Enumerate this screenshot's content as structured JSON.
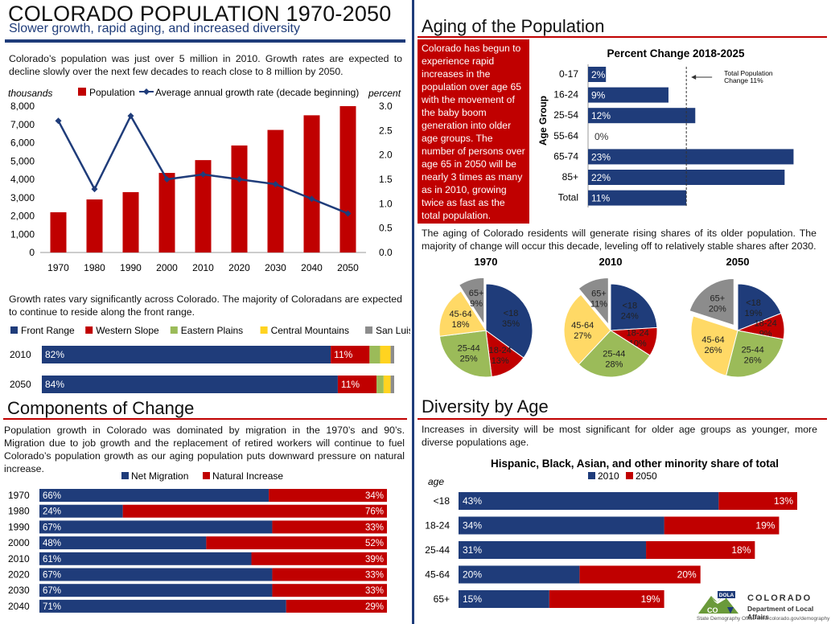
{
  "header": {
    "title": "COLORADO POPULATION 1970-2050",
    "subtitle": "Slower growth, rapid aging, and increased diversity"
  },
  "population": {
    "intro": "Colorado’s population was just over 5 million in 2010. Growth rates are expected to decline slowly over the next few decades to reach close to 8 million by 2050."
  },
  "regions": {
    "intro": "Growth rates vary significantly across Colorado. The majority of Coloradans are expected to continue to reside along the front range."
  },
  "components": {
    "title": "Components of Change",
    "text": "Population growth in Colorado was dominated by migration in the 1970’s and 90’s. Migration due to job growth and the replacement of retired workers will continue to fuel Colorado’s population growth as our aging population puts downward pressure on natural increase."
  },
  "aging": {
    "title": "Aging of the Population",
    "callout": "Colorado has begun to experience rapid increases in the population over age 65 with the movement of the baby boom generation into older age groups. The number of persons over age 65 in 2050 will be nearly 3 times as many as in 2010, growing twice as fast as the total population.",
    "pie_intro": "The aging of Colorado residents will generate rising shares of its older population. The majority of change will occur this decade, leveling off to relatively stable shares after 2030."
  },
  "diversity": {
    "title": "Diversity by Age",
    "text": "Increases in diversity will be most significant for older age groups as younger, more diverse populations age."
  },
  "footer": {
    "logo_small": "DOLA",
    "logo_abbrev": "CO",
    "logo_state": "COLORADO",
    "logo_dept": "Department of Local Affairs",
    "credit": "State Demography Office  www.colorado.gov/demography"
  },
  "colors": {
    "navy": "#1f3c7a",
    "red": "#c00000",
    "green": "#9bbb59",
    "yellow": "#ffd320",
    "gray": "#8c8c8c",
    "lightyellow": "#ffd966"
  },
  "chart_data": [
    {
      "id": "population",
      "type": "bar",
      "categories": [
        "1970",
        "1980",
        "1990",
        "2000",
        "2010",
        "2020",
        "2030",
        "2040",
        "2050"
      ],
      "series": [
        {
          "name": "Population",
          "kind": "bar",
          "axis": "left",
          "values": [
            2200,
            2900,
            3300,
            4350,
            5050,
            5850,
            6700,
            7500,
            8000
          ]
        },
        {
          "name": "Average annual growth rate (decade beginning)",
          "kind": "line",
          "axis": "right",
          "values": [
            2.7,
            1.3,
            2.8,
            1.5,
            1.6,
            1.5,
            1.4,
            1.1,
            0.8
          ]
        }
      ],
      "ylabel": "thousands",
      "y2label": "percent",
      "ylim": [
        0,
        8000
      ],
      "y2lim": [
        0,
        3.0
      ],
      "yticks": [
        "0",
        "1,000",
        "2,000",
        "3,000",
        "4,000",
        "5,000",
        "6,000",
        "7,000",
        "8,000"
      ],
      "y2ticks": [
        "0.0",
        "0.5",
        "1.0",
        "1.5",
        "2.0",
        "2.5",
        "3.0"
      ]
    },
    {
      "id": "regions",
      "type": "bar",
      "orientation": "horizontal-stacked",
      "categories": [
        "2010",
        "2050"
      ],
      "series": [
        {
          "name": "Front Range",
          "values": [
            82,
            84
          ]
        },
        {
          "name": "Western Slope",
          "values": [
            11,
            11
          ]
        },
        {
          "name": "Eastern Plains",
          "values": [
            3,
            2
          ]
        },
        {
          "name": "Central Mountains",
          "values": [
            3,
            2
          ]
        },
        {
          "name": "San Luis Valley",
          "values": [
            1,
            1
          ]
        }
      ],
      "labels": [
        [
          "82%",
          "11%"
        ],
        [
          "84%",
          "11%"
        ]
      ]
    },
    {
      "id": "components",
      "type": "bar",
      "orientation": "horizontal-stacked",
      "categories": [
        "1970",
        "1980",
        "1990",
        "2000",
        "2010",
        "2020",
        "2030",
        "2040"
      ],
      "series": [
        {
          "name": "Net Migration",
          "values": [
            66,
            24,
            67,
            48,
            61,
            67,
            67,
            71
          ],
          "labels": [
            "66%",
            "24%",
            "67%",
            "48%",
            "61%",
            "67%",
            "67%",
            "71%"
          ]
        },
        {
          "name": "Natural Increase",
          "values": [
            34,
            76,
            33,
            52,
            39,
            33,
            33,
            29
          ],
          "labels": [
            "34%",
            "76%",
            "33%",
            "52%",
            "39%",
            "33%",
            "33%",
            "29%"
          ]
        }
      ]
    },
    {
      "id": "percent-change",
      "type": "bar",
      "orientation": "horizontal",
      "title": "Percent Change 2018-2025",
      "ylabel": "Age Group",
      "categories": [
        "0-17",
        "16-24",
        "25-54",
        "55-64",
        "65-74",
        "85+",
        "Total"
      ],
      "values": [
        2,
        9,
        12,
        0,
        23,
        22,
        11
      ],
      "labels": [
        "2%",
        "9%",
        "12%",
        "0%",
        "23%",
        "22%",
        "11%"
      ],
      "xlim": [
        0,
        23.5
      ],
      "reference_line": 11,
      "annotation": [
        "Total Population",
        "Change 11%"
      ]
    },
    {
      "id": "age-pies",
      "type": "pie",
      "labels": [
        "<18",
        "18-24",
        "25-44",
        "45-64",
        "65+"
      ],
      "colors": [
        "#1f3c7a",
        "#c00000",
        "#9bbb59",
        "#ffd966",
        "#8c8c8c"
      ],
      "charts": [
        {
          "title": "1970",
          "values": [
            35,
            13,
            25,
            18,
            9
          ]
        },
        {
          "title": "2010",
          "values": [
            24,
            10,
            28,
            27,
            11
          ]
        },
        {
          "title": "2050",
          "values": [
            19,
            9,
            26,
            26,
            20
          ]
        }
      ]
    },
    {
      "id": "diversity",
      "type": "bar",
      "orientation": "horizontal",
      "title": "Hispanic, Black, Asian, and other minority share of total",
      "ylabel": "age",
      "categories": [
        "<18",
        "18-24",
        "25-44",
        "45-64",
        "65+"
      ],
      "series": [
        {
          "name": "2010",
          "values": [
            43,
            34,
            31,
            20,
            15
          ],
          "labels": [
            "43%",
            "34%",
            "31%",
            "20%",
            "15%"
          ]
        },
        {
          "name": "2050",
          "values": [
            56,
            53,
            49,
            40,
            34
          ],
          "labels": [
            "13%",
            "19%",
            "18%",
            "20%",
            "19%"
          ]
        }
      ],
      "xlim": [
        0,
        56
      ]
    }
  ]
}
